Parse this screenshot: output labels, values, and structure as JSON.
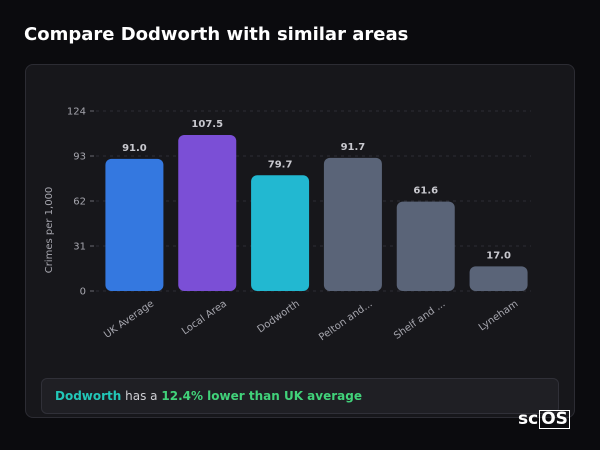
{
  "header": {
    "title": "Compare Dodworth with similar areas"
  },
  "chart_data": {
    "type": "bar",
    "categories": [
      "UK Average",
      "Local Area",
      "Dodworth",
      "Pelton and...",
      "Shelf and ...",
      "Lyneham"
    ],
    "values": [
      91.0,
      107.5,
      79.7,
      91.7,
      61.6,
      17.0
    ],
    "value_labels": [
      "91.0",
      "107.5",
      "79.7",
      "91.7",
      "61.6",
      "17.0"
    ],
    "colors": [
      "#3478e0",
      "#7b4fd6",
      "#22b8d1",
      "#5a6478",
      "#5a6478",
      "#5a6478"
    ],
    "ylabel": "Crimes per 1,000",
    "yticks": [
      0,
      31,
      62,
      93,
      124
    ],
    "ylim": [
      0,
      124
    ],
    "grid": true
  },
  "summary": {
    "area": "Dodworth",
    "middle": "has a",
    "difference": "12.4% lower than UK average"
  },
  "brand": {
    "prefix": "sc",
    "suffix": "OS"
  }
}
